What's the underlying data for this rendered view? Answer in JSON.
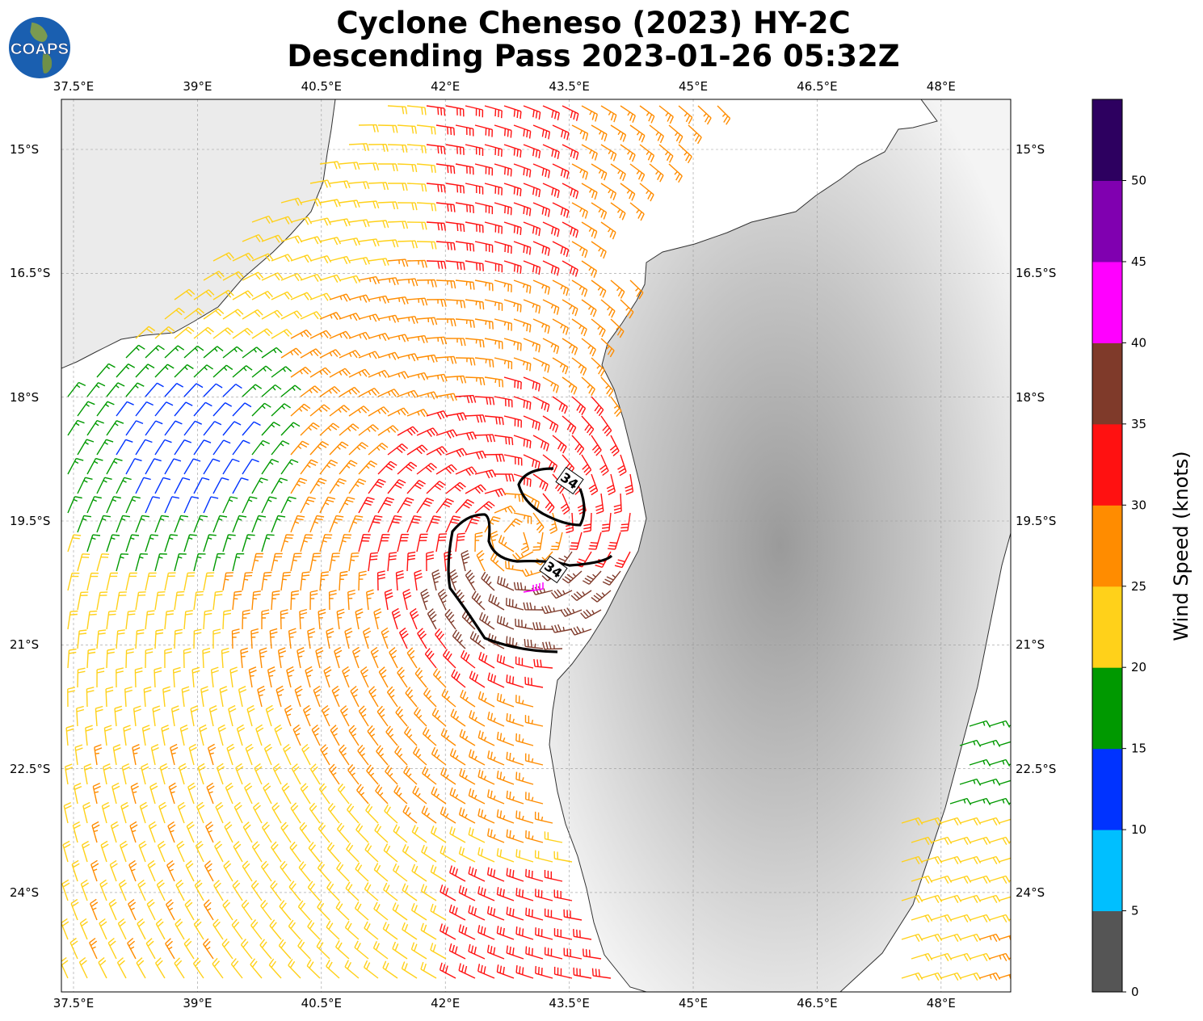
{
  "title": {
    "line1": "Cyclone Cheneso (2023) HY-2C",
    "line2": "Descending Pass 2023-01-26 05:32Z"
  },
  "logo": {
    "text": "COAPS"
  },
  "map": {
    "lon_ticks": [
      "37.5°E",
      "39°E",
      "40.5°E",
      "42°E",
      "43.5°E",
      "45°E",
      "46.5°E",
      "48°E"
    ],
    "lon_values": [
      37.5,
      39,
      40.5,
      42,
      43.5,
      45,
      46.5,
      48
    ],
    "lat_ticks": [
      "15°S",
      "16.5°S",
      "18°S",
      "19.5°S",
      "21°S",
      "22.5°S",
      "24°S"
    ],
    "lat_values": [
      15,
      16.5,
      18,
      19.5,
      21,
      22.5,
      24
    ],
    "contour_labels": [
      "34",
      "34"
    ],
    "contour_level_kt": 34
  },
  "colorbar": {
    "label": "Wind Speed (knots)",
    "ticks": [
      "0",
      "5",
      "10",
      "15",
      "20",
      "25",
      "30",
      "35",
      "40",
      "45",
      "50"
    ],
    "bounds": [
      0,
      55
    ],
    "colors": [
      "#555555",
      "#00bfff",
      "#0033ff",
      "#009900",
      "#ffd11a",
      "#ff8c00",
      "#ff1111",
      "#7f3a2a",
      "#ff00ff",
      "#8000b0",
      "#2d0060"
    ]
  }
}
